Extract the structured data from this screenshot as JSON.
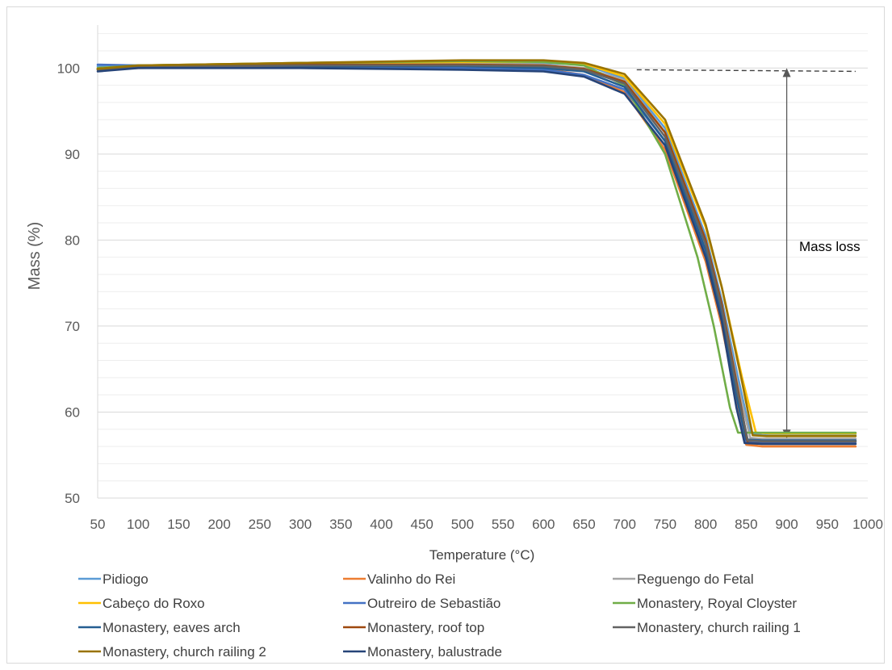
{
  "chart_data": {
    "type": "line",
    "xlabel": "Temperature (°C)",
    "ylabel": "Mass (%)",
    "xlim": [
      50,
      1000
    ],
    "ylim": [
      50,
      105
    ],
    "x_ticks": [
      50,
      100,
      150,
      200,
      250,
      300,
      350,
      400,
      450,
      500,
      550,
      600,
      650,
      700,
      750,
      800,
      850,
      900,
      950,
      1000
    ],
    "y_ticks": [
      50,
      60,
      70,
      80,
      90,
      100
    ],
    "grid": "major and minor horizontal gridlines",
    "legend_position": "bottom",
    "annotation": {
      "label": "Mass loss",
      "arrow_x": 900,
      "arrow_from": 99.8,
      "arrow_to": 57.3,
      "dashed_line_y": 99.8,
      "dashed_line_from": 715,
      "dashed_line_to": 985
    },
    "series": [
      {
        "name": "Pidiogo",
        "color": "#5b9bd5",
        "points": [
          [
            50,
            100.2
          ],
          [
            100,
            100.3
          ],
          [
            300,
            100.5
          ],
          [
            500,
            100.6
          ],
          [
            600,
            100.6
          ],
          [
            650,
            100.4
          ],
          [
            700,
            98.8
          ],
          [
            750,
            93.0
          ],
          [
            800,
            80.5
          ],
          [
            820,
            73.0
          ],
          [
            840,
            64.0
          ],
          [
            855,
            57.6
          ],
          [
            870,
            57.3
          ],
          [
            985,
            57.3
          ]
        ]
      },
      {
        "name": "Valinho do Rei",
        "color": "#ed7d31",
        "points": [
          [
            50,
            99.8
          ],
          [
            100,
            100.0
          ],
          [
            300,
            100.2
          ],
          [
            500,
            100.1
          ],
          [
            600,
            99.9
          ],
          [
            650,
            99.2
          ],
          [
            700,
            97.2
          ],
          [
            750,
            90.5
          ],
          [
            800,
            77.5
          ],
          [
            820,
            70.0
          ],
          [
            840,
            60.5
          ],
          [
            850,
            56.2
          ],
          [
            870,
            56.0
          ],
          [
            985,
            56.0
          ]
        ]
      },
      {
        "name": "Reguengo do Fetal",
        "color": "#a5a5a5",
        "points": [
          [
            50,
            100.0
          ],
          [
            100,
            100.3
          ],
          [
            300,
            100.5
          ],
          [
            500,
            100.5
          ],
          [
            600,
            100.4
          ],
          [
            650,
            100.0
          ],
          [
            700,
            98.6
          ],
          [
            750,
            92.5
          ],
          [
            800,
            80.0
          ],
          [
            820,
            72.5
          ],
          [
            840,
            63.0
          ],
          [
            855,
            57.0
          ],
          [
            870,
            56.9
          ],
          [
            985,
            56.9
          ]
        ]
      },
      {
        "name": "Cabeço do Roxo",
        "color": "#ffc000",
        "points": [
          [
            50,
            100.0
          ],
          [
            100,
            100.3
          ],
          [
            300,
            100.6
          ],
          [
            500,
            100.7
          ],
          [
            600,
            100.7
          ],
          [
            650,
            100.5
          ],
          [
            700,
            99.0
          ],
          [
            750,
            93.5
          ],
          [
            800,
            81.5
          ],
          [
            820,
            74.5
          ],
          [
            845,
            64.0
          ],
          [
            862,
            57.6
          ],
          [
            880,
            57.5
          ],
          [
            985,
            57.5
          ]
        ]
      },
      {
        "name": "Outreiro de Sebastião",
        "color": "#4472c4",
        "points": [
          [
            50,
            100.4
          ],
          [
            100,
            100.3
          ],
          [
            300,
            100.2
          ],
          [
            500,
            100.0
          ],
          [
            600,
            99.8
          ],
          [
            650,
            99.2
          ],
          [
            700,
            97.5
          ],
          [
            750,
            91.5
          ],
          [
            800,
            78.5
          ],
          [
            820,
            71.0
          ],
          [
            840,
            61.0
          ],
          [
            850,
            56.6
          ],
          [
            870,
            56.5
          ],
          [
            985,
            56.5
          ]
        ]
      },
      {
        "name": "Monastery, Royal Cloyster",
        "color": "#70ad47",
        "points": [
          [
            50,
            100.0
          ],
          [
            100,
            100.3
          ],
          [
            300,
            100.6
          ],
          [
            500,
            100.8
          ],
          [
            600,
            100.7
          ],
          [
            650,
            100.3
          ],
          [
            700,
            98.0
          ],
          [
            750,
            90.0
          ],
          [
            790,
            78.0
          ],
          [
            810,
            70.0
          ],
          [
            830,
            60.5
          ],
          [
            840,
            57.6
          ],
          [
            860,
            57.6
          ],
          [
            985,
            57.6
          ]
        ]
      },
      {
        "name": "Monastery, eaves arch",
        "color": "#255e91",
        "points": [
          [
            50,
            99.8
          ],
          [
            100,
            100.1
          ],
          [
            300,
            100.2
          ],
          [
            500,
            100.2
          ],
          [
            600,
            100.0
          ],
          [
            650,
            99.6
          ],
          [
            700,
            97.8
          ],
          [
            750,
            91.5
          ],
          [
            800,
            78.8
          ],
          [
            820,
            71.5
          ],
          [
            840,
            61.0
          ],
          [
            850,
            56.8
          ],
          [
            870,
            56.7
          ],
          [
            985,
            56.7
          ]
        ]
      },
      {
        "name": "Monastery, roof top",
        "color": "#9e480e",
        "points": [
          [
            50,
            99.9
          ],
          [
            100,
            100.2
          ],
          [
            300,
            100.4
          ],
          [
            500,
            100.4
          ],
          [
            600,
            100.3
          ],
          [
            650,
            99.9
          ],
          [
            700,
            98.4
          ],
          [
            750,
            92.5
          ],
          [
            800,
            80.0
          ],
          [
            820,
            72.5
          ],
          [
            840,
            62.5
          ],
          [
            852,
            56.4
          ],
          [
            870,
            56.3
          ],
          [
            985,
            56.3
          ]
        ]
      },
      {
        "name": "Monastery, church railing 1",
        "color": "#636363",
        "points": [
          [
            50,
            99.8
          ],
          [
            100,
            100.1
          ],
          [
            300,
            100.3
          ],
          [
            500,
            100.3
          ],
          [
            600,
            100.2
          ],
          [
            650,
            99.8
          ],
          [
            700,
            98.2
          ],
          [
            750,
            92.0
          ],
          [
            800,
            79.5
          ],
          [
            820,
            72.0
          ],
          [
            840,
            62.0
          ],
          [
            852,
            56.7
          ],
          [
            870,
            56.6
          ],
          [
            985,
            56.6
          ]
        ]
      },
      {
        "name": "Monastery, church railing 2",
        "color": "#997300",
        "points": [
          [
            50,
            99.9
          ],
          [
            100,
            100.3
          ],
          [
            300,
            100.6
          ],
          [
            500,
            100.9
          ],
          [
            600,
            100.9
          ],
          [
            650,
            100.6
          ],
          [
            700,
            99.3
          ],
          [
            750,
            94.0
          ],
          [
            800,
            81.8
          ],
          [
            820,
            74.5
          ],
          [
            845,
            63.5
          ],
          [
            858,
            57.3
          ],
          [
            875,
            57.2
          ],
          [
            985,
            57.2
          ]
        ]
      },
      {
        "name": "Monastery, balustrade",
        "color": "#264478",
        "points": [
          [
            50,
            99.6
          ],
          [
            100,
            100.0
          ],
          [
            300,
            100.0
          ],
          [
            500,
            99.8
          ],
          [
            600,
            99.6
          ],
          [
            650,
            99.0
          ],
          [
            700,
            97.0
          ],
          [
            750,
            91.0
          ],
          [
            800,
            78.0
          ],
          [
            820,
            70.5
          ],
          [
            838,
            60.5
          ],
          [
            848,
            56.4
          ],
          [
            870,
            56.3
          ],
          [
            985,
            56.3
          ]
        ]
      }
    ]
  }
}
